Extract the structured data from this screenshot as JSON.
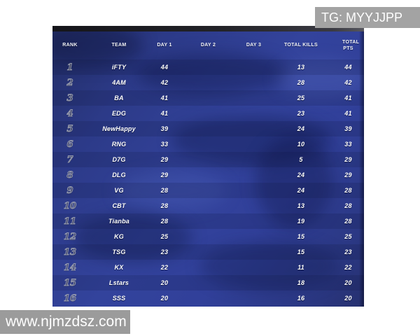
{
  "watermarks": {
    "top": "TG: MYYJJPP",
    "bottom": "www.njmzdsz.com"
  },
  "table": {
    "columns": [
      "RANK",
      "TEAM",
      "DAY 1",
      "DAY 2",
      "DAY 3",
      "TOTAL KILLS",
      "TOTAL PTS"
    ],
    "rows": [
      {
        "rank": "1",
        "team": "iFTY",
        "day1": "44",
        "day2": "",
        "day3": "",
        "kills": "13",
        "pts": "44"
      },
      {
        "rank": "2",
        "team": "4AM",
        "day1": "42",
        "day2": "",
        "day3": "",
        "kills": "28",
        "pts": "42"
      },
      {
        "rank": "3",
        "team": "BA",
        "day1": "41",
        "day2": "",
        "day3": "",
        "kills": "25",
        "pts": "41"
      },
      {
        "rank": "4",
        "team": "EDG",
        "day1": "41",
        "day2": "",
        "day3": "",
        "kills": "23",
        "pts": "41"
      },
      {
        "rank": "5",
        "team": "NewHappy",
        "day1": "39",
        "day2": "",
        "day3": "",
        "kills": "24",
        "pts": "39"
      },
      {
        "rank": "6",
        "team": "RNG",
        "day1": "33",
        "day2": "",
        "day3": "",
        "kills": "10",
        "pts": "33"
      },
      {
        "rank": "7",
        "team": "D7G",
        "day1": "29",
        "day2": "",
        "day3": "",
        "kills": "5",
        "pts": "29"
      },
      {
        "rank": "8",
        "team": "DLG",
        "day1": "29",
        "day2": "",
        "day3": "",
        "kills": "24",
        "pts": "29"
      },
      {
        "rank": "9",
        "team": "VG",
        "day1": "28",
        "day2": "",
        "day3": "",
        "kills": "24",
        "pts": "28"
      },
      {
        "rank": "10",
        "team": "CBT",
        "day1": "28",
        "day2": "",
        "day3": "",
        "kills": "13",
        "pts": "28"
      },
      {
        "rank": "11",
        "team": "Tianba",
        "day1": "28",
        "day2": "",
        "day3": "",
        "kills": "19",
        "pts": "28"
      },
      {
        "rank": "12",
        "team": "KG",
        "day1": "25",
        "day2": "",
        "day3": "",
        "kills": "15",
        "pts": "25"
      },
      {
        "rank": "13",
        "team": "TSG",
        "day1": "23",
        "day2": "",
        "day3": "",
        "kills": "15",
        "pts": "23"
      },
      {
        "rank": "14",
        "team": "KX",
        "day1": "22",
        "day2": "",
        "day3": "",
        "kills": "11",
        "pts": "22"
      },
      {
        "rank": "15",
        "team": "Lstars",
        "day1": "20",
        "day2": "",
        "day3": "",
        "kills": "18",
        "pts": "20"
      },
      {
        "rank": "16",
        "team": "SSS",
        "day1": "20",
        "day2": "",
        "day3": "",
        "kills": "16",
        "pts": "20"
      }
    ]
  },
  "colors": {
    "table_blue": "#31409a",
    "table_blue_dark": "#232d66",
    "top_strip": "#1c1c22",
    "watermark_gray": "#9e9e9e",
    "text_white": "#ffffff"
  }
}
